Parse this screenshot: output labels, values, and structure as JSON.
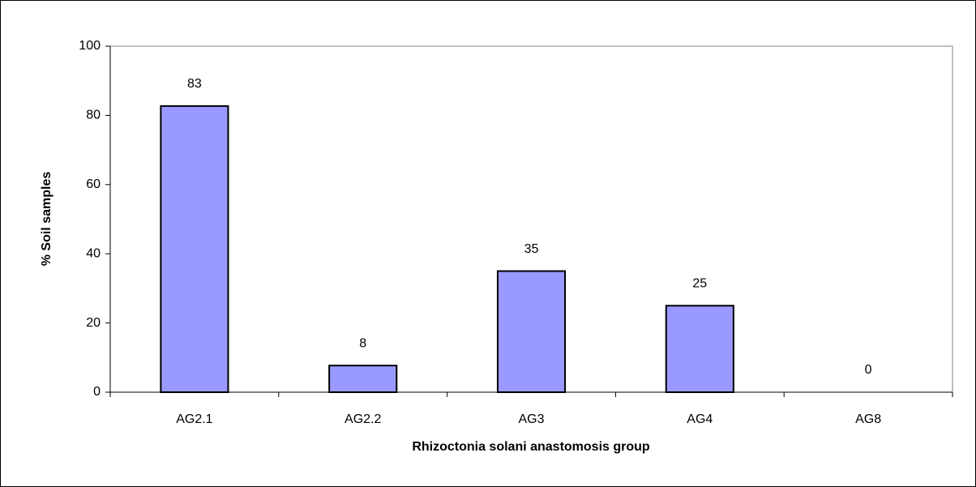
{
  "chart_data": {
    "type": "bar",
    "x_label": "Rhizoctonia solani anastomosis group",
    "y_label": "% Soil samples",
    "categories": [
      "AG2.1",
      "AG2.2",
      "AG3",
      "AG4",
      "AG8"
    ],
    "values": [
      82.7,
      7.7,
      35,
      25,
      0
    ],
    "value_labels": [
      "83",
      "8",
      "35",
      "25",
      "0"
    ],
    "color": "#9999ff",
    "ylim": [
      0,
      100
    ],
    "yticks": [
      0,
      20,
      40,
      60,
      80,
      100
    ],
    "grid": false
  }
}
